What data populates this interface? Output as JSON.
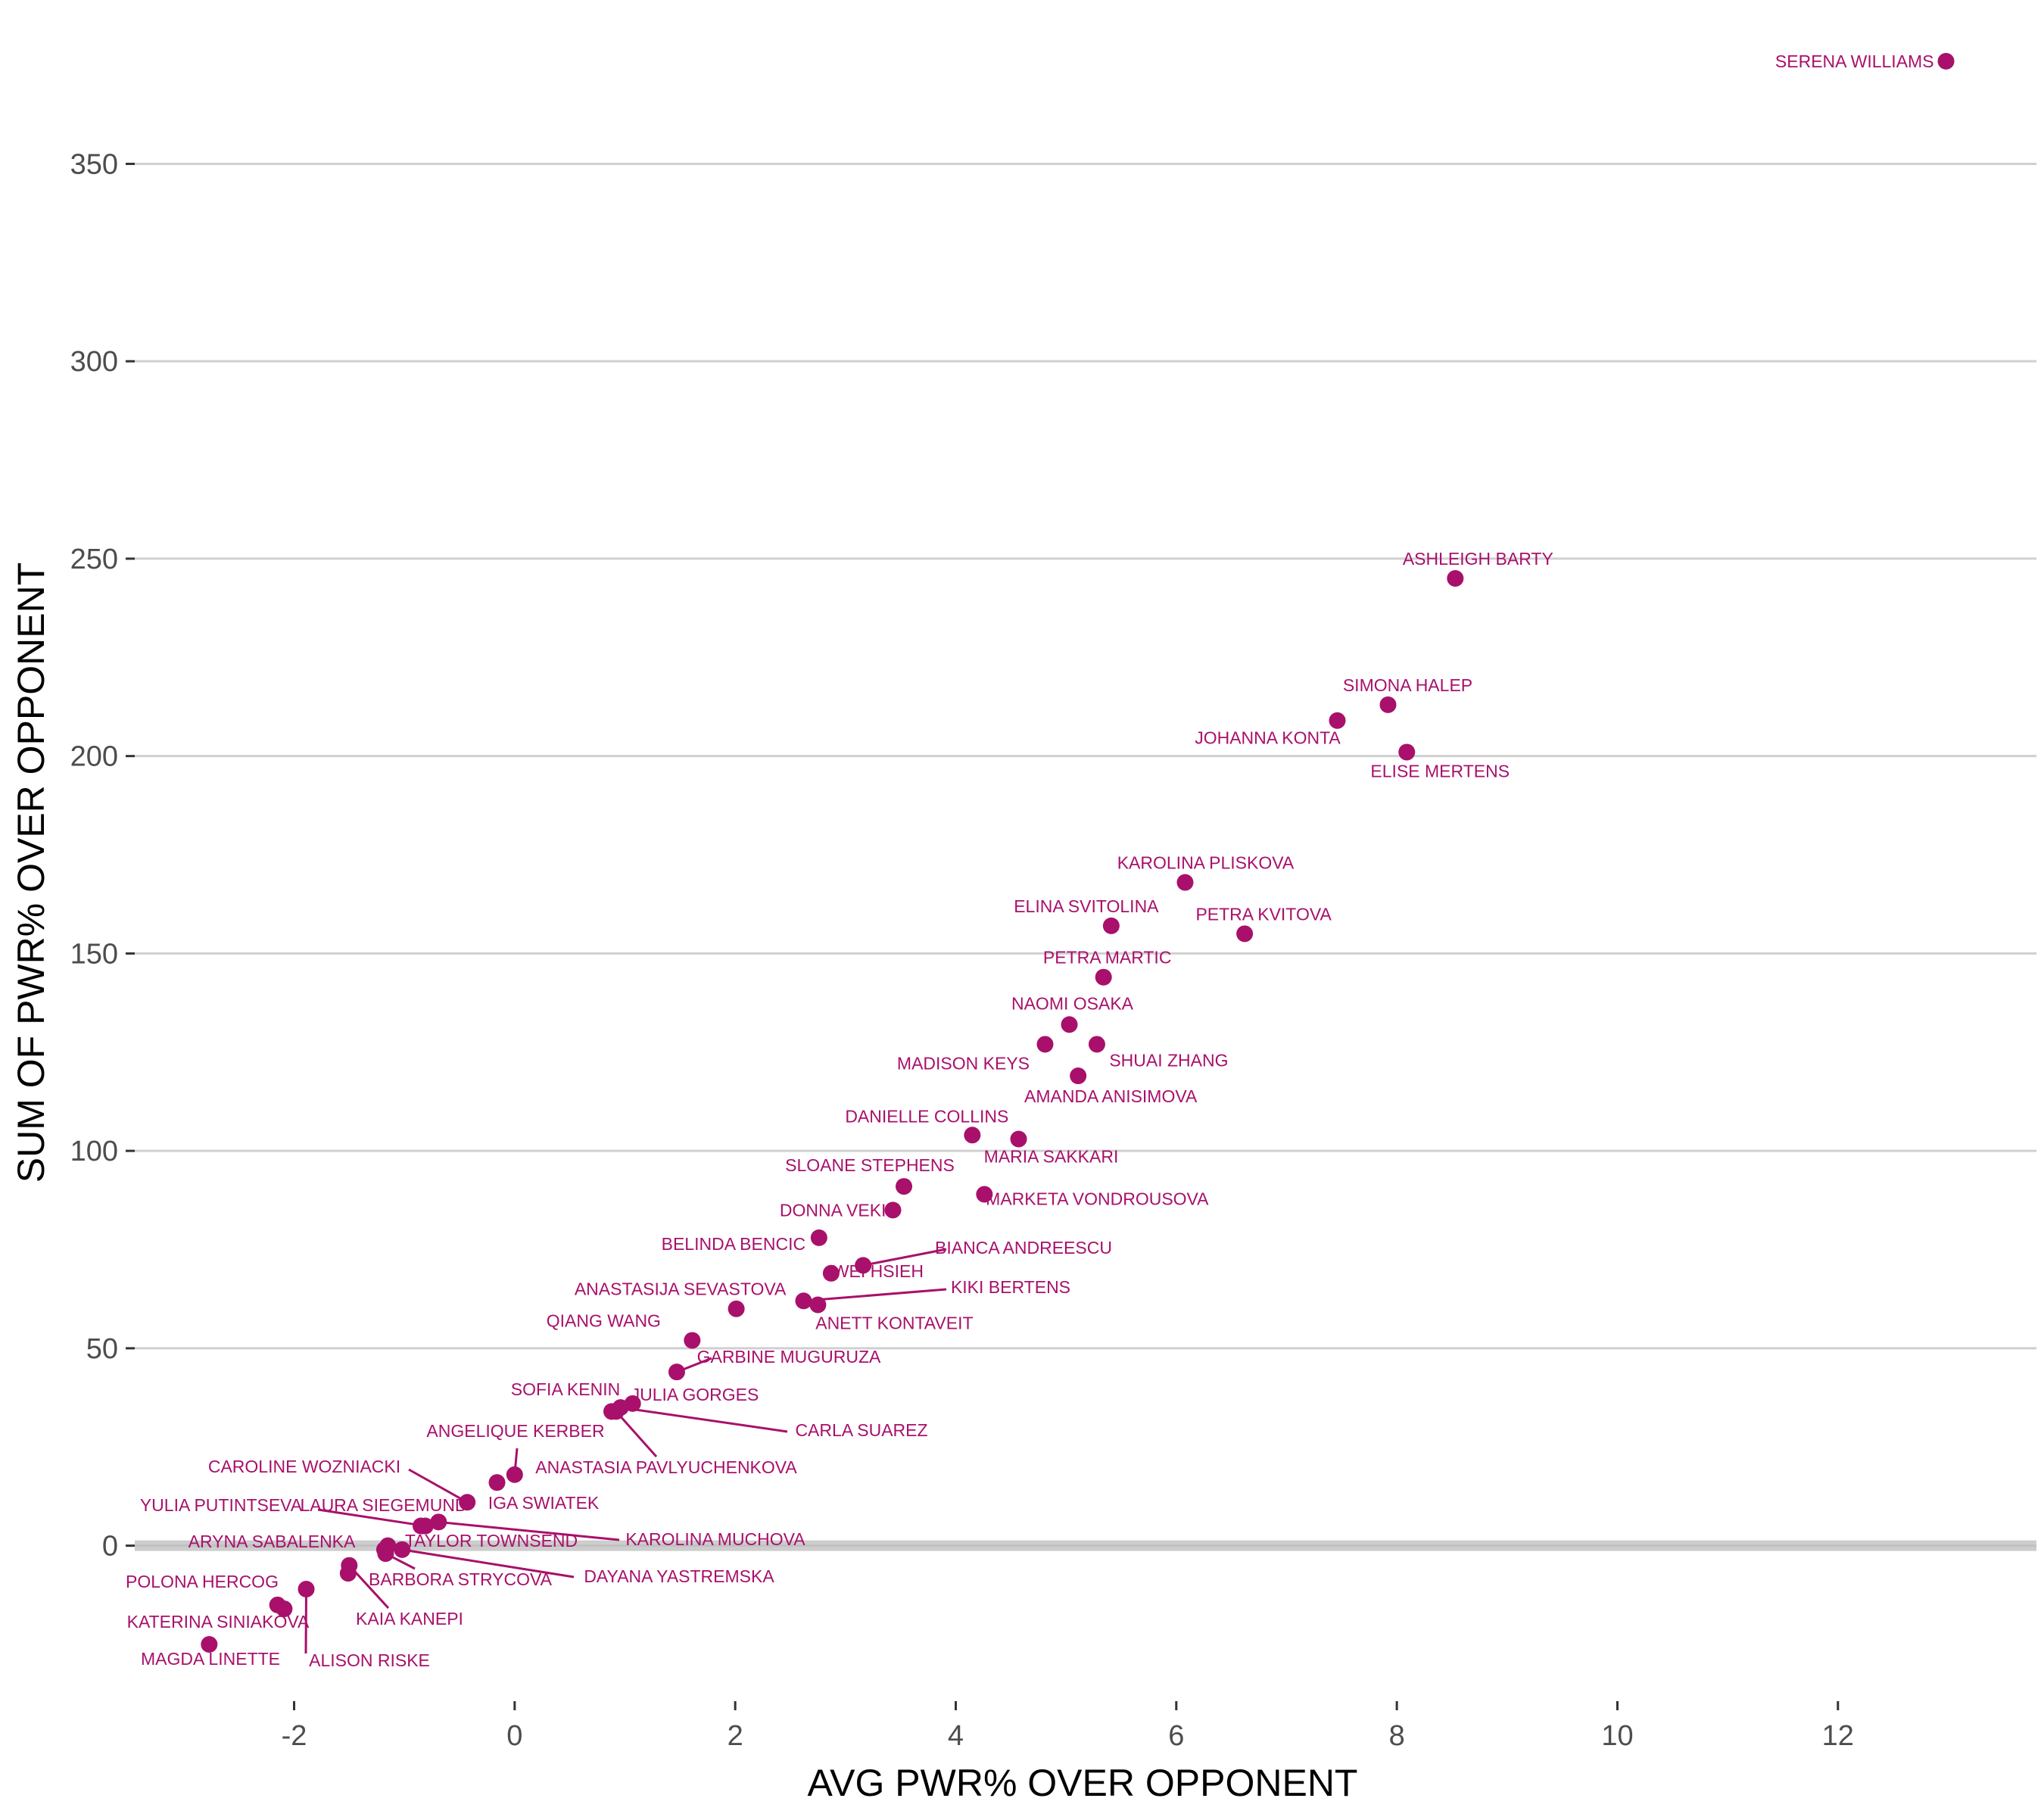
{
  "chart_data": {
    "type": "scatter",
    "xlabel": "AVG PWR% OVER OPPONENT",
    "ylabel": "SUM OF PWR% OVER OPPONENT",
    "xlim": [
      -3.5,
      13.8
    ],
    "ylim": [
      -39,
      380
    ],
    "x_ticks": [
      -2,
      0,
      2,
      4,
      6,
      8,
      10,
      12
    ],
    "x_tick_labels": [
      "-2",
      "0",
      "2",
      "4",
      "6",
      "8",
      "10",
      "12"
    ],
    "y_ticks": [
      0,
      50,
      100,
      150,
      200,
      250,
      300,
      350
    ],
    "y_tick_labels": [
      "0",
      "50",
      "100",
      "150",
      "200",
      "250",
      "300",
      "350"
    ],
    "grid": "horizontal",
    "reference_line_y": 0,
    "point_color": "#a8106b",
    "points": [
      {
        "label": "SERENA WILLIAMS",
        "x": 12.98,
        "y": 376
      },
      {
        "label": "ASHLEIGH BARTY",
        "x": 8.53,
        "y": 245
      },
      {
        "label": "SIMONA HALEP",
        "x": 7.92,
        "y": 213
      },
      {
        "label": "JOHANNA KONTA",
        "x": 7.46,
        "y": 209
      },
      {
        "label": "ELISE MERTENS",
        "x": 8.09,
        "y": 201
      },
      {
        "label": "KAROLINA PLISKOVA",
        "x": 6.08,
        "y": 168
      },
      {
        "label": "ELINA SVITOLINA",
        "x": 5.41,
        "y": 157
      },
      {
        "label": "PETRA KVITOVA",
        "x": 6.62,
        "y": 155
      },
      {
        "label": "PETRA MARTIC",
        "x": 5.34,
        "y": 144
      },
      {
        "label": "NAOMI OSAKA",
        "x": 5.03,
        "y": 132
      },
      {
        "label": "MADISON KEYS",
        "x": 4.81,
        "y": 127
      },
      {
        "label": "SHUAI ZHANG",
        "x": 5.28,
        "y": 127
      },
      {
        "label": "AMANDA ANISIMOVA",
        "x": 5.11,
        "y": 119
      },
      {
        "label": "DANIELLE COLLINS",
        "x": 4.15,
        "y": 104
      },
      {
        "label": "MARIA SAKKARI",
        "x": 4.57,
        "y": 103
      },
      {
        "label": "SLOANE STEPHENS",
        "x": 3.53,
        "y": 91
      },
      {
        "label": "MARKETA VONDROUSOVA",
        "x": 4.26,
        "y": 89
      },
      {
        "label": "DONNA VEKIC",
        "x": 3.43,
        "y": 85
      },
      {
        "label": "BELINDA BENCIC",
        "x": 2.76,
        "y": 78
      },
      {
        "label": "BIANCA ANDREESCU",
        "x": 3.16,
        "y": 71
      },
      {
        "label": "WEI HSIEH",
        "x": 2.87,
        "y": 69
      },
      {
        "label": "KIKI BERTENS",
        "x": 2.62,
        "y": 62
      },
      {
        "label": "ANETT KONTAVEIT",
        "x": 2.75,
        "y": 61
      },
      {
        "label": "ANASTASIJA SEVASTOVA",
        "x": 2.01,
        "y": 60
      },
      {
        "label": "QIANG WANG",
        "x": 1.61,
        "y": 52
      },
      {
        "label": "GARBINE MUGURUZA",
        "x": 1.47,
        "y": 44
      },
      {
        "label": "JULIA GORGES",
        "x": 1.07,
        "y": 36
      },
      {
        "label": "CARLA SUAREZ",
        "x": 0.96,
        "y": 35
      },
      {
        "label": "SOFIA KENIN",
        "x": 0.88,
        "y": 34
      },
      {
        "label": "ANASTASIA PAVLYUCHENKOVA",
        "x": 0.92,
        "y": 34
      },
      {
        "label": "ANGELIQUE KERBER",
        "x": 0.0,
        "y": 18
      },
      {
        "label": "IGA SWIATEK",
        "x": -0.16,
        "y": 16
      },
      {
        "label": "CAROLINE WOZNIACKI",
        "x": -0.43,
        "y": 11
      },
      {
        "label": "KAROLINA MUCHOVA",
        "x": -0.69,
        "y": 6
      },
      {
        "label": "LAURA SIEGEMUND",
        "x": -0.85,
        "y": 5
      },
      {
        "label": "YULIA PUTINTSEVA",
        "x": -0.81,
        "y": 5
      },
      {
        "label": "TAYLOR TOWNSEND",
        "x": -1.15,
        "y": 0
      },
      {
        "label": "ARYNA SABALENKA",
        "x": -1.18,
        "y": -1
      },
      {
        "label": "DAYANA YASTREMSKA",
        "x": -1.02,
        "y": -1
      },
      {
        "label": "BARBORA STRYCOVA",
        "x": -1.17,
        "y": -2
      },
      {
        "label": "KAIA KANEPI",
        "x": -1.5,
        "y": -5
      },
      {
        "label": "POLONA HERCOG",
        "x": -1.51,
        "y": -7
      },
      {
        "label": "ALISON RISKE",
        "x": -1.89,
        "y": -11
      },
      {
        "label": "KATERINA SINIAKOVA",
        "x": -2.15,
        "y": -15
      },
      {
        "label": "KATERINA SINIAKOVA",
        "x": -2.09,
        "y": -16
      },
      {
        "label": "MAGDA LINETTE",
        "x": -2.77,
        "y": -25
      }
    ]
  }
}
